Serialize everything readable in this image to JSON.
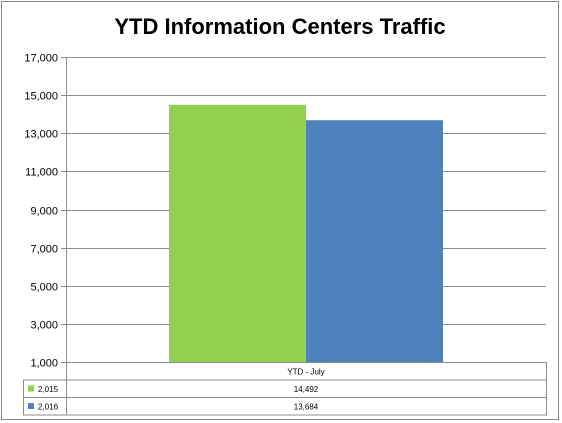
{
  "chart_data": {
    "type": "bar",
    "title": "YTD Information Centers Traffic",
    "categories": [
      "YTD - July"
    ],
    "series": [
      {
        "name": "2,015",
        "values": [
          14492
        ],
        "value_labels": [
          "14,492"
        ],
        "color": "#92d050"
      },
      {
        "name": "2,016",
        "values": [
          13684
        ],
        "value_labels": [
          "13,684"
        ],
        "color": "#4f81bd"
      }
    ],
    "ylim": [
      1000,
      17000
    ],
    "yticks": [
      1000,
      3000,
      5000,
      7000,
      9000,
      11000,
      13000,
      15000,
      17000
    ],
    "ytick_labels": [
      "1,000",
      "3,000",
      "5,000",
      "7,000",
      "9,000",
      "11,000",
      "13,000",
      "15,000",
      "17,000"
    ],
    "grid": true,
    "legend": "data-table"
  }
}
